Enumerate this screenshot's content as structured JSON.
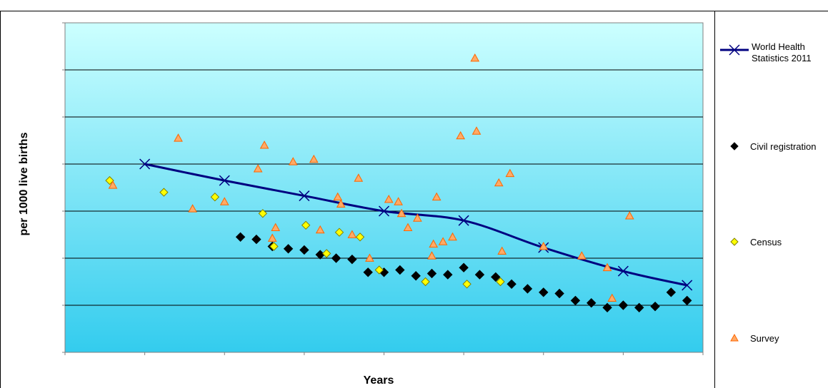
{
  "chart_data": {
    "type": "scatter",
    "title": "",
    "xlabel": "Years",
    "ylabel": "per 1000 live births",
    "xlim": [
      1970,
      2010
    ],
    "ylim": [
      0,
      140
    ],
    "x_ticks": [
      "1970",
      "1975",
      "1980",
      "1985",
      "1990",
      "1995",
      "2000",
      "2005",
      "2010"
    ],
    "y_ticks": [
      "0",
      "20",
      "40",
      "60",
      "80",
      "100",
      "120",
      "140"
    ],
    "grid": "horizontal",
    "legend_position": "right",
    "colors": {
      "plot_gradient_top": "#ccffff",
      "plot_gradient_bottom": "#33ccee",
      "tick_label": "#ffffff",
      "who_line": "#000080",
      "civil": "#000000",
      "census_fill": "#ffff00",
      "survey_fill": "#ffaa66",
      "survey_stroke": "#ff6600"
    },
    "series": [
      {
        "name": "World Health Statistics 2011",
        "type": "line",
        "marker": "x",
        "x": [
          1975,
          1980,
          1985,
          1990,
          1995,
          2000,
          2005,
          2009
        ],
        "y": [
          80,
          73,
          66.5,
          60,
          56,
          44.5,
          34.5,
          28.5
        ]
      },
      {
        "name": "Civil registration",
        "type": "scatter",
        "marker": "diamond",
        "x": [
          1981,
          1982,
          1983,
          1984,
          1985,
          1986,
          1987,
          1988,
          1989,
          1990,
          1991,
          1992,
          1993,
          1994,
          1995,
          1996,
          1997,
          1998,
          1999,
          2000,
          2001,
          2002,
          2003,
          2004,
          2005,
          2006,
          2007,
          2008,
          2009
        ],
        "y": [
          49,
          48,
          45,
          44,
          43.5,
          41.5,
          40,
          39.5,
          34,
          34,
          35,
          32.5,
          33.5,
          33,
          36,
          33,
          32,
          29,
          27,
          25.5,
          25,
          22,
          21,
          19,
          20,
          19,
          19.5,
          25.5,
          22
        ]
      },
      {
        "name": "Census",
        "type": "scatter",
        "marker": "diamond",
        "x": [
          1972.8,
          1976.2,
          1979.4,
          1982.4,
          1983.1,
          1985.1,
          1986.4,
          1987.2,
          1988.5,
          1989.7,
          1992.6,
          1995.2,
          1997.3
        ],
        "y": [
          73,
          68,
          66,
          59,
          45,
          54,
          42,
          51,
          49,
          35,
          30,
          29,
          30
        ]
      },
      {
        "name": "Survey",
        "type": "scatter",
        "marker": "triangle",
        "x": [
          1973,
          1977.1,
          1978,
          1980,
          1982.1,
          1982.5,
          1983,
          1983.2,
          1984.3,
          1985.6,
          1986,
          1987.1,
          1987.3,
          1988,
          1988.4,
          1989.1,
          1990.3,
          1990.9,
          1991.1,
          1991.5,
          1992.1,
          1993,
          1993.1,
          1993.3,
          1993.7,
          1994.3,
          1994.8,
          1995.7,
          1995.8,
          1997.2,
          1997.4,
          1997.9,
          2000,
          2002.4,
          2004,
          2004.3,
          2005.4
        ],
        "y": [
          71,
          91,
          61,
          64,
          78,
          88,
          48.5,
          53,
          81,
          82,
          52,
          66,
          63,
          50,
          74,
          40,
          65,
          64,
          59,
          53,
          57,
          41,
          46,
          66,
          47,
          49,
          92,
          125,
          94,
          72,
          43,
          76,
          45,
          41,
          36,
          23,
          58
        ]
      }
    ]
  }
}
